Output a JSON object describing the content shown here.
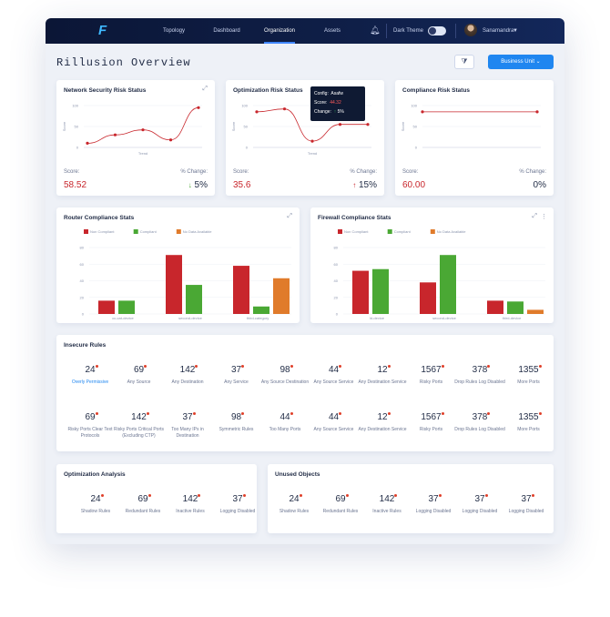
{
  "nav": {
    "items": [
      "Topology",
      "Dashboard",
      "Organization",
      "Assets"
    ],
    "active_index": 2,
    "dark_theme_label": "Dark Theme",
    "user_name": "Sanamandra"
  },
  "page": {
    "title": "Rillusion Overview",
    "business_unit_label": "Business Unit"
  },
  "network_card": {
    "title": "Network Security Risk Status",
    "score_label": "Score:",
    "score": "58.52",
    "change_label": "% Change:",
    "change": "5%",
    "change_direction": "down",
    "x_label": "Trend",
    "y_label": "Score",
    "y_ticks": [
      "100",
      "50",
      "0"
    ],
    "chart_data": {
      "type": "line",
      "xlabel": "Trend",
      "ylabel": "Score",
      "ylim": [
        0,
        100
      ],
      "values": [
        10,
        30,
        42,
        18,
        95
      ]
    }
  },
  "optimization_card": {
    "title": "Optimization Risk Status",
    "score_label": "Score:",
    "score": "35.6",
    "change_label": "% Change:",
    "change": "15%",
    "change_direction": "up",
    "x_label": "Trend",
    "y_label": "Score",
    "y_ticks": [
      "100",
      "50",
      "0"
    ],
    "tooltip": {
      "title": "Config:",
      "title_value": "Asafw",
      "score_label": "Score:",
      "score_value": "44.32",
      "change_label": "Change:",
      "change_value": "5%"
    },
    "chart_data": {
      "type": "line",
      "xlabel": "Trend",
      "ylabel": "Score",
      "ylim": [
        0,
        100
      ],
      "values": [
        85,
        92,
        15,
        55,
        55
      ]
    }
  },
  "compliance_card": {
    "title": "Compliance Risk Status",
    "score_label": "Score:",
    "score": "60.00",
    "change_label": "% Change:",
    "change": "0%",
    "y_label": "Score",
    "y_ticks": [
      "100",
      "50",
      "0"
    ],
    "chart_data": {
      "type": "line",
      "ylabel": "Score",
      "ylim": [
        0,
        100
      ],
      "values": [
        85,
        85
      ]
    }
  },
  "router_card": {
    "title": "Router Compliance Stats",
    "legend": [
      "Non Compliant",
      "Compliant",
      "No Data Available"
    ],
    "y_ticks": [
      "80",
      "60",
      "40",
      "20",
      "0"
    ],
    "chart_data": {
      "type": "bar",
      "ylim": [
        0,
        80
      ],
      "categories": [
        "cc-cat-device",
        "second-device",
        "third-category"
      ],
      "series": [
        {
          "name": "Non Compliant",
          "values": [
            16,
            71,
            58
          ]
        },
        {
          "name": "Compliant",
          "values": [
            16,
            35,
            9
          ]
        },
        {
          "name": "No Data Available",
          "values": [
            0,
            0,
            43
          ]
        }
      ]
    }
  },
  "firewall_card": {
    "title": "Firewall Compliance Stats",
    "legend": [
      "Non Compliant",
      "Compliant",
      "No Data Available"
    ],
    "y_ticks": [
      "80",
      "60",
      "40",
      "20",
      "0"
    ],
    "chart_data": {
      "type": "bar",
      "ylim": [
        0,
        80
      ],
      "categories": [
        "ld-device",
        "second-device",
        "third-device"
      ],
      "series": [
        {
          "name": "Non Compliant",
          "values": [
            52,
            38,
            16
          ]
        },
        {
          "name": "Compliant",
          "values": [
            54,
            71,
            15
          ]
        },
        {
          "name": "No Data Available",
          "values": [
            0,
            0,
            5
          ]
        }
      ]
    }
  },
  "insecure_rules": {
    "title": "Insecure Rules",
    "row1": [
      {
        "value": "24",
        "label": "Overly Permissive"
      },
      {
        "value": "69",
        "label": "Any Source"
      },
      {
        "value": "142",
        "label": "Any Destination"
      },
      {
        "value": "37",
        "label": "Any Service"
      },
      {
        "value": "98",
        "label": "Any Source Destination"
      },
      {
        "value": "44",
        "label": "Any Source Service"
      },
      {
        "value": "12",
        "label": "Any Destination Service"
      },
      {
        "value": "1567",
        "label": "Risky Ports"
      },
      {
        "value": "378",
        "label": "Drop Rules Log Disabled"
      },
      {
        "value": "1355",
        "label": "More Ports"
      }
    ],
    "row2": [
      {
        "value": "69",
        "label": "Risky Ports Clear Text Protocols"
      },
      {
        "value": "142",
        "label": "Risky Ports Critical Ports (Excluding CTP)"
      },
      {
        "value": "37",
        "label": "Too Many IPs in Destination"
      },
      {
        "value": "98",
        "label": "Symmetric Rules"
      },
      {
        "value": "44",
        "label": "Too Many Ports"
      },
      {
        "value": "44",
        "label": "Any Source Service"
      },
      {
        "value": "12",
        "label": "Any Destination Service"
      },
      {
        "value": "1567",
        "label": "Risky Ports"
      },
      {
        "value": "378",
        "label": "Drop Rules Log Disabled"
      },
      {
        "value": "1355",
        "label": "More Ports"
      }
    ]
  },
  "optimization_analysis": {
    "title": "Optimization Analysis",
    "items": [
      {
        "value": "24",
        "label": "Shadow Rules"
      },
      {
        "value": "69",
        "label": "Redundant Rules"
      },
      {
        "value": "142",
        "label": "Inactive Rules"
      },
      {
        "value": "37",
        "label": "Logging Disabled"
      }
    ]
  },
  "unused_objects": {
    "title": "Unused Objects",
    "items": [
      {
        "value": "24",
        "label": "Shadow Rules"
      },
      {
        "value": "69",
        "label": "Redundant Rules"
      },
      {
        "value": "142",
        "label": "Inactive Rules"
      },
      {
        "value": "37",
        "label": "Logging Disabled"
      },
      {
        "value": "37",
        "label": "Logging Disabled"
      },
      {
        "value": "37",
        "label": "Logging Disabled"
      }
    ]
  },
  "colors": {
    "non_compliant": "#c8262c",
    "compliant": "#4aa834",
    "no_data": "#e07b2b",
    "accent": "#1f86f0",
    "line": "#c8262c"
  }
}
